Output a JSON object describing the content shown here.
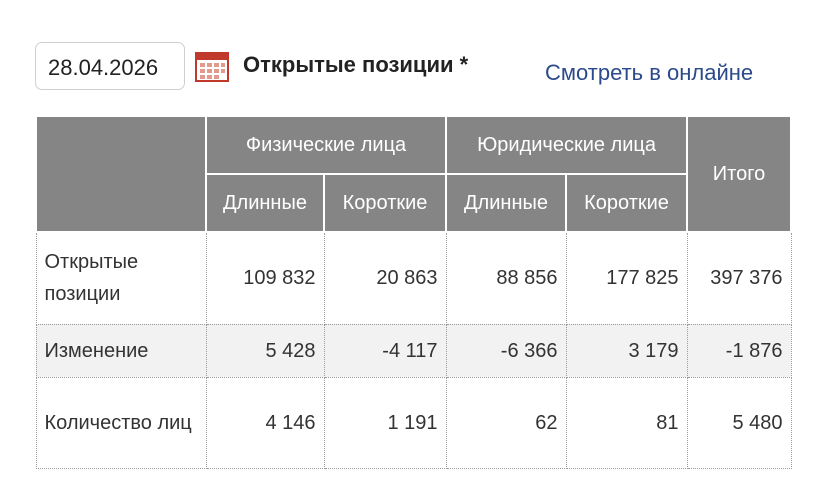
{
  "header": {
    "date": "28.04.2026",
    "title": "Открытые позиции *",
    "link": "Смотреть в онлайне"
  },
  "table": {
    "groups": [
      "Физические лица",
      "Юридические лица"
    ],
    "subheaders": [
      "Длинные",
      "Короткие",
      "Длинные",
      "Короткие"
    ],
    "total": "Итого",
    "rows": [
      {
        "label": "Открытые позиции",
        "cells": [
          "109 832",
          "20 863",
          "88 856",
          "177 825",
          "397 376"
        ]
      },
      {
        "label": "Изменение",
        "cells": [
          "5 428",
          "-4 117",
          "-6 366",
          "3 179",
          "-1 876"
        ]
      },
      {
        "label": "Количество лиц",
        "cells": [
          "4 146",
          "1 191",
          "62",
          "81",
          "5 480"
        ]
      }
    ]
  }
}
